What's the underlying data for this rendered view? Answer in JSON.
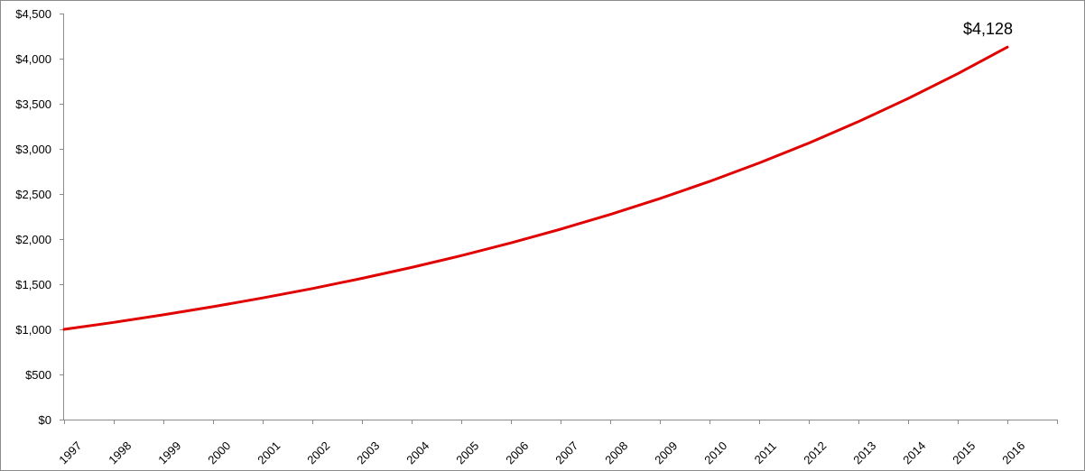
{
  "chart_data": {
    "type": "line",
    "title": "",
    "xlabel": "",
    "ylabel": "",
    "categories": [
      "1997",
      "1998",
      "1999",
      "2000",
      "2001",
      "2002",
      "2003",
      "2004",
      "2005",
      "2006",
      "2007",
      "2008",
      "2009",
      "2010",
      "2011",
      "2012",
      "2013",
      "2014",
      "2015",
      "2016"
    ],
    "x_tick_labels": [
      "1997",
      "1998",
      "1999",
      "2000",
      "2001",
      "2002",
      "2003",
      "2004",
      "2005",
      "2006",
      "2007",
      "2008",
      "2009",
      "2010",
      "2011",
      "2012",
      "2013",
      "2014",
      "2015",
      "2016"
    ],
    "y_tick_labels": [
      "$0",
      "$500",
      "$1,000",
      "$1,500",
      "$2,000",
      "$2,500",
      "$3,000",
      "$3,500",
      "$4,000",
      "$4,500"
    ],
    "y_ticks": [
      0,
      500,
      1000,
      1500,
      2000,
      2500,
      3000,
      3500,
      4000,
      4500
    ],
    "ylim": [
      0,
      4500
    ],
    "grid": false,
    "series": [
      {
        "name": "",
        "color": "#e00000",
        "values": [
          1000,
          1077,
          1161,
          1251,
          1348,
          1452,
          1565,
          1686,
          1817,
          1958,
          2110,
          2273,
          2449,
          2639,
          2844,
          3064,
          3302,
          3558,
          3833,
          4128
        ]
      }
    ],
    "annotation": {
      "text": "$4,128",
      "series_index": 0,
      "point_index": 19
    }
  }
}
